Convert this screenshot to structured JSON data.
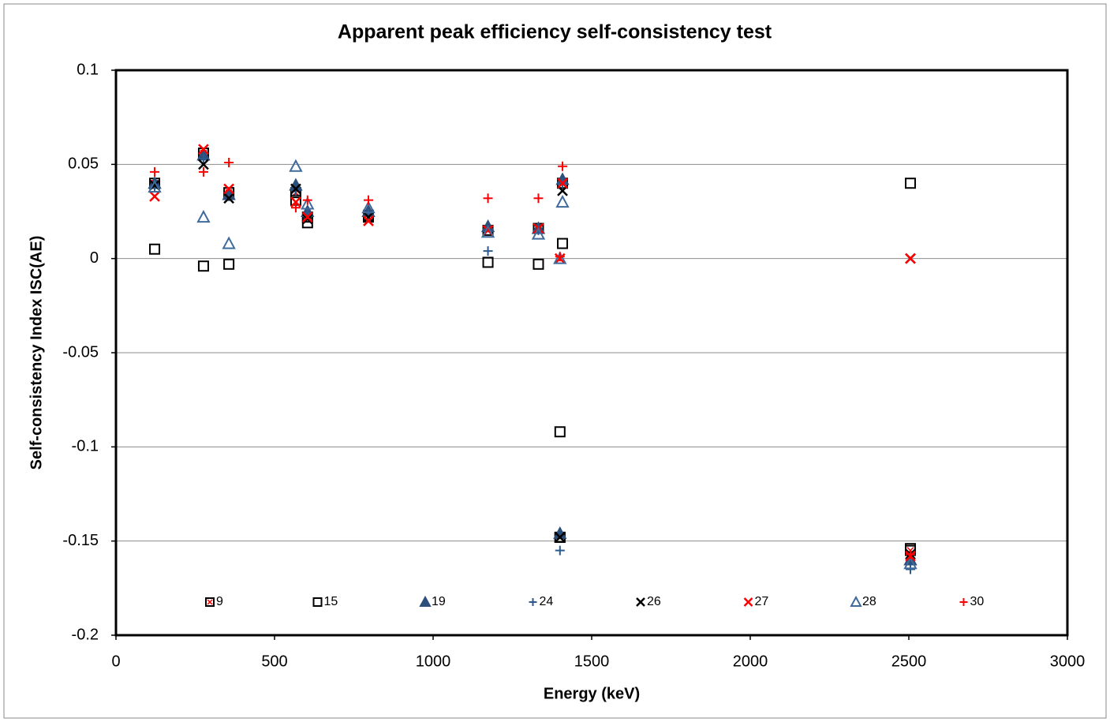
{
  "chart_data": {
    "type": "scatter",
    "title": "Apparent peak efficiency self-consistency test",
    "x_label": "Energy (keV)",
    "y_label": "Self-consistency Index ISC(AE)",
    "xlim": [
      0,
      3000
    ],
    "xticks": [
      0,
      500,
      1000,
      1500,
      2000,
      2500,
      3000
    ],
    "ylim": [
      -0.2,
      0.1
    ],
    "yticks": [
      -0.2,
      -0.15,
      -0.1,
      -0.05,
      0,
      0.05,
      0.1
    ],
    "grid": true,
    "legend": "bottom",
    "series": [
      {
        "name": "9",
        "marker": "square-x",
        "color": "#000000",
        "color2": "#ff0000",
        "x": [
          122,
          276,
          356,
          567,
          604,
          796,
          1173,
          1332,
          1408,
          1400,
          2505
        ],
        "values": [
          0.04,
          0.056,
          0.035,
          0.035,
          0.022,
          0.022,
          0.015,
          0.016,
          0.04,
          -0.148,
          -0.155
        ]
      },
      {
        "name": "15",
        "marker": "square",
        "color": "#000000",
        "x": [
          122,
          276,
          356,
          567,
          604,
          796,
          1173,
          1332,
          1400,
          1408,
          2505,
          1400,
          2505
        ],
        "values": [
          0.005,
          -0.004,
          -0.003,
          0.031,
          0.019,
          0.023,
          -0.002,
          -0.003,
          -0.092,
          0.008,
          0.04,
          -0.148,
          -0.154
        ]
      },
      {
        "name": "19",
        "marker": "triangle-filled",
        "color": "#2c4f7c",
        "x": [
          122,
          276,
          356,
          567,
          604,
          796,
          1173,
          1332,
          1408,
          1400,
          2505
        ],
        "values": [
          0.04,
          0.055,
          0.034,
          0.039,
          0.025,
          0.025,
          0.017,
          0.016,
          0.042,
          -0.146,
          -0.16
        ]
      },
      {
        "name": "24",
        "marker": "plus",
        "color": "#2c5a8c",
        "x": [
          122,
          276,
          356,
          567,
          604,
          796,
          1173,
          1332,
          1408,
          1400,
          2505
        ],
        "values": [
          0.038,
          0.053,
          0.033,
          0.036,
          0.024,
          0.024,
          0.004,
          0.015,
          0.04,
          -0.155,
          -0.165
        ]
      },
      {
        "name": "26",
        "marker": "x",
        "color": "#000000",
        "x": [
          122,
          276,
          356,
          567,
          604,
          796,
          1173,
          1332,
          1408,
          2505,
          1400,
          2505
        ],
        "values": [
          0.039,
          0.05,
          0.032,
          0.037,
          0.021,
          0.022,
          0.015,
          0.016,
          0.036,
          0.0,
          -0.148,
          -0.157
        ]
      },
      {
        "name": "27",
        "marker": "x",
        "color": "#ff0000",
        "x": [
          122,
          276,
          356,
          567,
          604,
          796,
          1173,
          1332,
          1408,
          1400,
          2505,
          2505
        ],
        "values": [
          0.033,
          0.058,
          0.037,
          0.03,
          0.022,
          0.02,
          0.015,
          0.016,
          0.04,
          0.0,
          0.0,
          -0.158
        ]
      },
      {
        "name": "28",
        "marker": "triangle",
        "color": "#3e6a9c",
        "x": [
          122,
          276,
          356,
          567,
          604,
          796,
          1173,
          1332,
          1408,
          1400,
          2505
        ],
        "values": [
          0.038,
          0.022,
          0.008,
          0.049,
          0.029,
          0.027,
          0.014,
          0.013,
          0.03,
          0.0,
          -0.162
        ]
      },
      {
        "name": "30",
        "marker": "plus",
        "color": "#ff0000",
        "x": [
          122,
          276,
          356,
          567,
          604,
          796,
          1173,
          1332,
          1408,
          1400,
          2505
        ],
        "values": [
          0.046,
          0.046,
          0.051,
          0.027,
          0.031,
          0.031,
          0.032,
          0.032,
          0.049,
          0.001,
          -0.157
        ]
      }
    ]
  }
}
